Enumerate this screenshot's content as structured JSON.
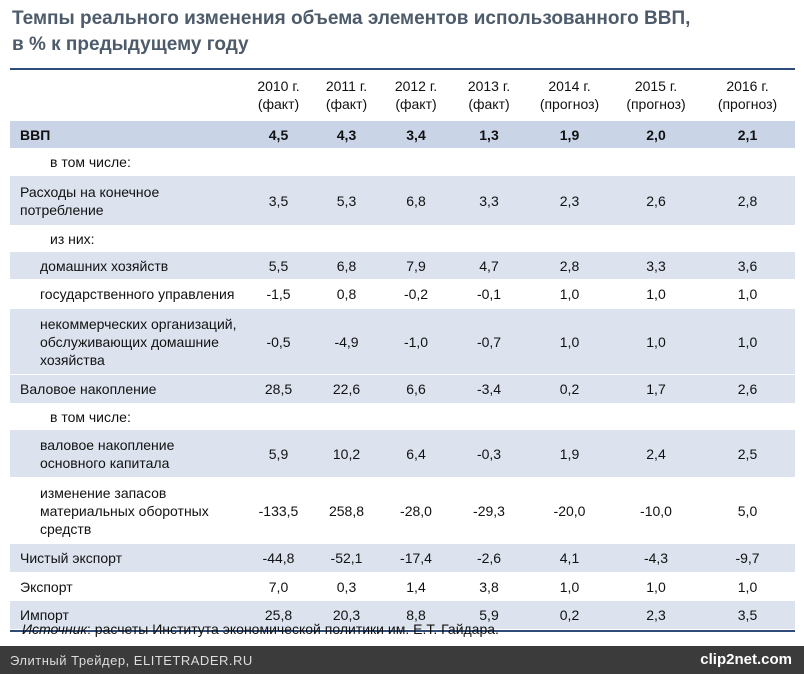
{
  "header": {
    "title": [
      "Темпы реального изменения объема элементов использованного ВВП,",
      "в % к предыдущему году"
    ]
  },
  "table": {
    "columns": [
      [
        "2010 г.",
        "(факт)"
      ],
      [
        "2011 г.",
        "(факт)"
      ],
      [
        "2012 г.",
        "(факт)"
      ],
      [
        "2013 г.",
        "(факт)"
      ],
      [
        "2014 г.",
        "(прогноз)"
      ],
      [
        "2015 г.",
        "(прогноз)"
      ],
      [
        "2016 г.",
        "(прогноз)"
      ]
    ],
    "rows": [
      {
        "label": [
          "ВВП"
        ],
        "values": [
          "4,5",
          "4,3",
          "3,4",
          "1,3",
          "1,9",
          "2,0",
          "2,1"
        ]
      },
      {
        "label": [
          "в том числе:"
        ],
        "values": []
      },
      {
        "label": [
          "Расходы на конечное",
          "потребление"
        ],
        "values": [
          "3,5",
          "5,3",
          "6,8",
          "3,3",
          "2,3",
          "2,6",
          "2,8"
        ]
      },
      {
        "label": [
          "из них:"
        ],
        "values": []
      },
      {
        "label": [
          "домашних хозяйств"
        ],
        "values": [
          "5,5",
          "6,8",
          "7,9",
          "4,7",
          "2,8",
          "3,3",
          "3,6"
        ]
      },
      {
        "label": [
          "государственного управления"
        ],
        "values": [
          "-1,5",
          "0,8",
          "-0,2",
          "-0,1",
          "1,0",
          "1,0",
          "1,0"
        ]
      },
      {
        "label": [
          "некоммерческих организаций,",
          "обслуживающих домашние",
          "хозяйства"
        ],
        "values": [
          "-0,5",
          "-4,9",
          "-1,0",
          "-0,7",
          "1,0",
          "1,0",
          "1,0"
        ]
      },
      {
        "label": [
          "Валовое накопление"
        ],
        "values": [
          "28,5",
          "22,6",
          "6,6",
          "-3,4",
          "0,2",
          "1,7",
          "2,6"
        ]
      },
      {
        "label": [
          "в том числе:"
        ],
        "values": []
      },
      {
        "label": [
          "валовое накопление",
          "основного капитала"
        ],
        "values": [
          "5,9",
          "10,2",
          "6,4",
          "-0,3",
          "1,9",
          "2,4",
          "2,5"
        ]
      },
      {
        "label": [
          "изменение запасов",
          "материальных оборотных",
          "средств"
        ],
        "values": [
          "-133,5",
          "258,8",
          "-28,0",
          "-29,3",
          "-20,0",
          "-10,0",
          "5,0"
        ]
      },
      {
        "label": [
          "Чистый экспорт"
        ],
        "values": [
          "-44,8",
          "-52,1",
          "-17,4",
          "-2,6",
          "4,1",
          "-4,3",
          "-9,7"
        ]
      },
      {
        "label": [
          "Экспорт"
        ],
        "values": [
          "7,0",
          "0,3",
          "1,4",
          "3,8",
          "1,0",
          "1,0",
          "1,0"
        ]
      },
      {
        "label": [
          "Импорт"
        ],
        "values": [
          "25,8",
          "20,3",
          "8,8",
          "5,9",
          "0,2",
          "2,3",
          "3,5"
        ]
      }
    ]
  },
  "source": {
    "label": "Источник",
    "text": ": расчеты Института экономической политики им. Е.Т. Гайдара."
  },
  "footer": {
    "watermark": "Элитный Трейдер, ELITETRADER.RU",
    "logo": "clip2net.com"
  }
}
